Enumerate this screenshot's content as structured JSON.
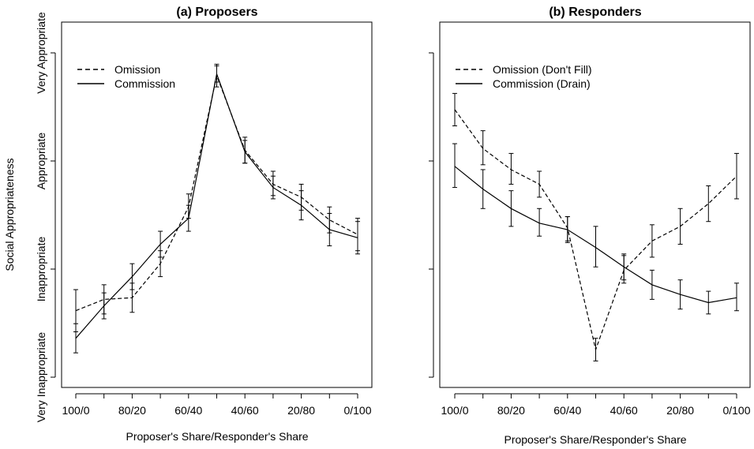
{
  "ylabel": "Social Appropriateness",
  "chart_data": [
    {
      "type": "line",
      "title": "(a) Proposers",
      "xlabel": "Proposer's Share/Responder's Share",
      "ylabel": "Social Appropriateness",
      "x": [
        0,
        1,
        2,
        3,
        4,
        5,
        6,
        7,
        8,
        9,
        10
      ],
      "x_tick_positions": [
        0,
        2,
        4,
        6,
        8,
        10
      ],
      "x_tick_labels": [
        "100/0",
        "80/20",
        "60/40",
        "40/60",
        "20/80",
        "0/100"
      ],
      "ylim": [
        -1,
        1
      ],
      "y_tick_values": [
        -1,
        -0.3333,
        0.3333,
        1
      ],
      "y_tick_labels": [
        "Very Inappropriate",
        "Inappropriate",
        "Appropriate",
        "Very Appropriate"
      ],
      "legend_position": "top-left",
      "series": [
        {
          "name": "Omission",
          "dash": "dashed",
          "values": [
            -0.59,
            -0.52,
            -0.51,
            -0.3,
            0.05,
            0.86,
            0.4,
            0.19,
            0.11,
            -0.03,
            -0.12
          ],
          "err_low": [
            -0.72,
            -0.61,
            -0.6,
            -0.38,
            -0.02,
            0.79,
            0.32,
            0.12,
            0.03,
            -0.11,
            -0.22
          ],
          "err_high": [
            -0.46,
            -0.43,
            -0.42,
            -0.22,
            0.13,
            0.93,
            0.48,
            0.27,
            0.19,
            0.05,
            -0.02
          ]
        },
        {
          "name": "Commission",
          "dash": "solid",
          "values": [
            -0.76,
            -0.56,
            -0.38,
            -0.18,
            -0.02,
            0.87,
            0.39,
            0.17,
            0.06,
            -0.09,
            -0.14
          ],
          "err_low": [
            -0.85,
            -0.64,
            -0.46,
            -0.26,
            -0.1,
            0.82,
            0.32,
            0.1,
            -0.03,
            -0.19,
            -0.24
          ],
          "err_high": [
            -0.67,
            -0.48,
            -0.3,
            -0.1,
            0.06,
            0.92,
            0.46,
            0.24,
            0.15,
            0.01,
            -0.04
          ]
        }
      ]
    },
    {
      "type": "line",
      "title": "(b) Responders",
      "xlabel": "Proposer's Share/Responder's Share",
      "x": [
        0,
        1,
        2,
        3,
        4,
        5,
        6,
        7,
        8,
        9,
        10
      ],
      "x_tick_positions": [
        0,
        2,
        4,
        6,
        8,
        10
      ],
      "x_tick_labels": [
        "100/0",
        "80/20",
        "60/40",
        "40/60",
        "20/80",
        "0/100"
      ],
      "ylim": [
        -1,
        1
      ],
      "y_tick_values": [
        -1,
        -0.3333,
        0.3333,
        1
      ],
      "legend_position": "top-left",
      "series": [
        {
          "name": "Omission (Don't Fill)",
          "dash": "dashed",
          "values": [
            0.65,
            0.41,
            0.28,
            0.19,
            -0.08,
            -0.83,
            -0.34,
            -0.16,
            -0.07,
            0.07,
            0.24
          ],
          "err_low": [
            0.55,
            0.31,
            0.19,
            0.11,
            -0.16,
            -0.9,
            -0.42,
            -0.26,
            -0.18,
            -0.04,
            0.1
          ],
          "err_high": [
            0.75,
            0.52,
            0.38,
            0.27,
            -0.01,
            -0.76,
            -0.25,
            -0.06,
            0.04,
            0.18,
            0.38
          ]
        },
        {
          "name": "Commission (Drain)",
          "dash": "solid",
          "values": [
            0.3,
            0.16,
            0.04,
            -0.05,
            -0.09,
            -0.2,
            -0.32,
            -0.43,
            -0.49,
            -0.54,
            -0.51
          ],
          "err_low": [
            0.17,
            0.04,
            -0.07,
            -0.13,
            -0.17,
            -0.32,
            -0.4,
            -0.52,
            -0.58,
            -0.61,
            -0.59
          ],
          "err_high": [
            0.44,
            0.28,
            0.15,
            0.04,
            -0.01,
            -0.07,
            -0.24,
            -0.34,
            -0.4,
            -0.47,
            -0.42
          ]
        }
      ]
    }
  ]
}
